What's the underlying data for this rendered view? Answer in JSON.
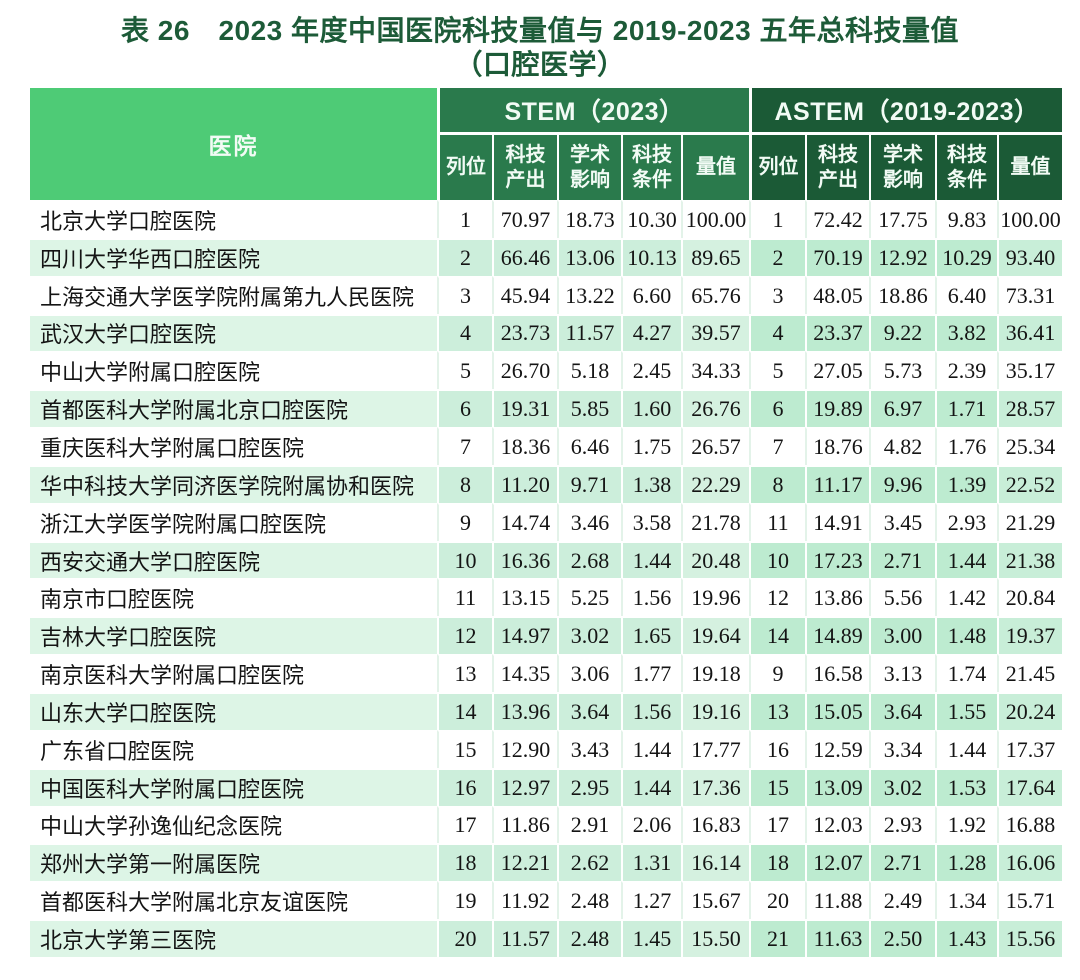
{
  "title": {
    "line1": "表 26　2023 年度中国医院科技量值与 2019-2023 五年总科技量值",
    "line2": "（口腔医学）"
  },
  "colors": {
    "title_text": "#1d5b38",
    "hospital_header_bg": "#4ecb76",
    "stem_header_bg": "#2a7a4c",
    "astem_header_bg": "#1b5a36",
    "stripe_hospital": "#ddf5e6",
    "stripe_stem": "#cceedb",
    "stripe_astem": "#bdebd0",
    "header_text": "#f2fbf5"
  },
  "table": {
    "hospital_header": "医院",
    "groups": [
      {
        "label": "STEM（2023）",
        "columns": [
          "列位",
          "科技\n产出",
          "学术\n影响",
          "科技\n条件",
          "量值"
        ]
      },
      {
        "label": "ASTEM（2019-2023）",
        "columns": [
          "列位",
          "科技\n产出",
          "学术\n影响",
          "科技\n条件",
          "量值"
        ]
      }
    ],
    "rows": [
      {
        "hospital": "北京大学口腔医院",
        "stem": [
          "1",
          "70.97",
          "18.73",
          "10.30",
          "100.00"
        ],
        "astem": [
          "1",
          "72.42",
          "17.75",
          "9.83",
          "100.00"
        ]
      },
      {
        "hospital": "四川大学华西口腔医院",
        "stem": [
          "2",
          "66.46",
          "13.06",
          "10.13",
          "89.65"
        ],
        "astem": [
          "2",
          "70.19",
          "12.92",
          "10.29",
          "93.40"
        ]
      },
      {
        "hospital": "上海交通大学医学院附属第九人民医院",
        "stem": [
          "3",
          "45.94",
          "13.22",
          "6.60",
          "65.76"
        ],
        "astem": [
          "3",
          "48.05",
          "18.86",
          "6.40",
          "73.31"
        ]
      },
      {
        "hospital": "武汉大学口腔医院",
        "stem": [
          "4",
          "23.73",
          "11.57",
          "4.27",
          "39.57"
        ],
        "astem": [
          "4",
          "23.37",
          "9.22",
          "3.82",
          "36.41"
        ]
      },
      {
        "hospital": "中山大学附属口腔医院",
        "stem": [
          "5",
          "26.70",
          "5.18",
          "2.45",
          "34.33"
        ],
        "astem": [
          "5",
          "27.05",
          "5.73",
          "2.39",
          "35.17"
        ]
      },
      {
        "hospital": "首都医科大学附属北京口腔医院",
        "stem": [
          "6",
          "19.31",
          "5.85",
          "1.60",
          "26.76"
        ],
        "astem": [
          "6",
          "19.89",
          "6.97",
          "1.71",
          "28.57"
        ]
      },
      {
        "hospital": "重庆医科大学附属口腔医院",
        "stem": [
          "7",
          "18.36",
          "6.46",
          "1.75",
          "26.57"
        ],
        "astem": [
          "7",
          "18.76",
          "4.82",
          "1.76",
          "25.34"
        ]
      },
      {
        "hospital": "华中科技大学同济医学院附属协和医院",
        "stem": [
          "8",
          "11.20",
          "9.71",
          "1.38",
          "22.29"
        ],
        "astem": [
          "8",
          "11.17",
          "9.96",
          "1.39",
          "22.52"
        ]
      },
      {
        "hospital": "浙江大学医学院附属口腔医院",
        "stem": [
          "9",
          "14.74",
          "3.46",
          "3.58",
          "21.78"
        ],
        "astem": [
          "11",
          "14.91",
          "3.45",
          "2.93",
          "21.29"
        ]
      },
      {
        "hospital": "西安交通大学口腔医院",
        "stem": [
          "10",
          "16.36",
          "2.68",
          "1.44",
          "20.48"
        ],
        "astem": [
          "10",
          "17.23",
          "2.71",
          "1.44",
          "21.38"
        ]
      },
      {
        "hospital": "南京市口腔医院",
        "stem": [
          "11",
          "13.15",
          "5.25",
          "1.56",
          "19.96"
        ],
        "astem": [
          "12",
          "13.86",
          "5.56",
          "1.42",
          "20.84"
        ]
      },
      {
        "hospital": "吉林大学口腔医院",
        "stem": [
          "12",
          "14.97",
          "3.02",
          "1.65",
          "19.64"
        ],
        "astem": [
          "14",
          "14.89",
          "3.00",
          "1.48",
          "19.37"
        ]
      },
      {
        "hospital": "南京医科大学附属口腔医院",
        "stem": [
          "13",
          "14.35",
          "3.06",
          "1.77",
          "19.18"
        ],
        "astem": [
          "9",
          "16.58",
          "3.13",
          "1.74",
          "21.45"
        ]
      },
      {
        "hospital": "山东大学口腔医院",
        "stem": [
          "14",
          "13.96",
          "3.64",
          "1.56",
          "19.16"
        ],
        "astem": [
          "13",
          "15.05",
          "3.64",
          "1.55",
          "20.24"
        ]
      },
      {
        "hospital": "广东省口腔医院",
        "stem": [
          "15",
          "12.90",
          "3.43",
          "1.44",
          "17.77"
        ],
        "astem": [
          "16",
          "12.59",
          "3.34",
          "1.44",
          "17.37"
        ]
      },
      {
        "hospital": "中国医科大学附属口腔医院",
        "stem": [
          "16",
          "12.97",
          "2.95",
          "1.44",
          "17.36"
        ],
        "astem": [
          "15",
          "13.09",
          "3.02",
          "1.53",
          "17.64"
        ]
      },
      {
        "hospital": "中山大学孙逸仙纪念医院",
        "stem": [
          "17",
          "11.86",
          "2.91",
          "2.06",
          "16.83"
        ],
        "astem": [
          "17",
          "12.03",
          "2.93",
          "1.92",
          "16.88"
        ]
      },
      {
        "hospital": "郑州大学第一附属医院",
        "stem": [
          "18",
          "12.21",
          "2.62",
          "1.31",
          "16.14"
        ],
        "astem": [
          "18",
          "12.07",
          "2.71",
          "1.28",
          "16.06"
        ]
      },
      {
        "hospital": "首都医科大学附属北京友谊医院",
        "stem": [
          "19",
          "11.92",
          "2.48",
          "1.27",
          "15.67"
        ],
        "astem": [
          "20",
          "11.88",
          "2.49",
          "1.34",
          "15.71"
        ]
      },
      {
        "hospital": "北京大学第三医院",
        "stem": [
          "20",
          "11.57",
          "2.48",
          "1.45",
          "15.50"
        ],
        "astem": [
          "21",
          "11.63",
          "2.50",
          "1.43",
          "15.56"
        ]
      }
    ]
  }
}
